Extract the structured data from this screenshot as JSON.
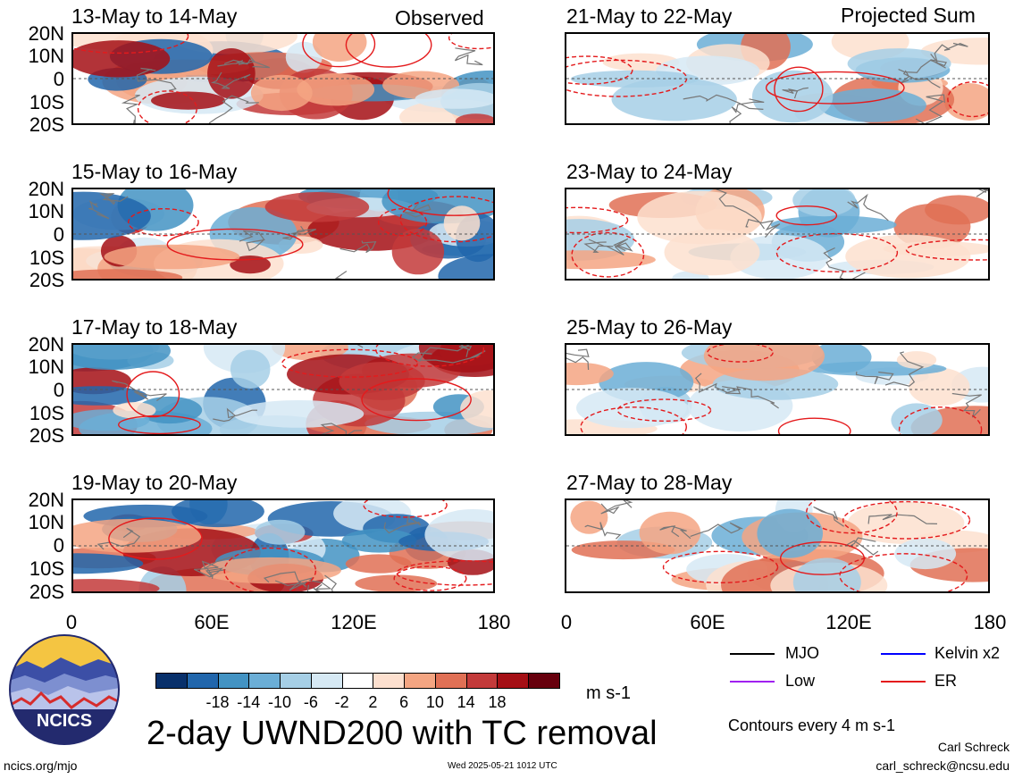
{
  "header": {
    "left_label": "Observed",
    "right_label": "Projected Sum"
  },
  "panels_left": [
    {
      "title": "13-May to 14-May"
    },
    {
      "title": "15-May to 16-May"
    },
    {
      "title": "17-May to 18-May"
    },
    {
      "title": "19-May to 20-May"
    }
  ],
  "panels_right": [
    {
      "title": "21-May to 22-May"
    },
    {
      "title": "23-May to 24-May"
    },
    {
      "title": "25-May to 26-May"
    },
    {
      "title": "27-May to 28-May"
    }
  ],
  "lat_labels": [
    "20N",
    "10N",
    "0",
    "10S",
    "20S"
  ],
  "lon_labels": [
    "0",
    "60E",
    "120E",
    "180"
  ],
  "colorbar": {
    "labels": [
      "-18",
      "-14",
      "-10",
      "-6",
      "-2",
      "2",
      "6",
      "10",
      "14",
      "18"
    ],
    "colors": [
      "#08306b",
      "#2166ac",
      "#4393c3",
      "#6baed6",
      "#a6cfe6",
      "#d6e9f4",
      "#ffffff",
      "#fde0cf",
      "#f4a582",
      "#e07055",
      "#c33a3a",
      "#a50f15",
      "#67000d"
    ],
    "units": "m s-1"
  },
  "legend": {
    "mjo": "MJO",
    "mjo_color": "#000000",
    "kelvin": "Kelvin x2",
    "kelvin_color": "#0000ff",
    "low": "Low",
    "low_color": "#a020f0",
    "er": "ER",
    "er_color": "#e41a1c",
    "contours": "Contours every 4 m s-1"
  },
  "footer": {
    "title": "2-day UWND200 with TC removal",
    "url": "ncics.org/mjo",
    "timestamp": "Wed 2025-05-21 1012 UTC",
    "author": "Carl Schreck",
    "email": "carl_schreck@ncsu.edu",
    "logo_text": "NCICS"
  }
}
